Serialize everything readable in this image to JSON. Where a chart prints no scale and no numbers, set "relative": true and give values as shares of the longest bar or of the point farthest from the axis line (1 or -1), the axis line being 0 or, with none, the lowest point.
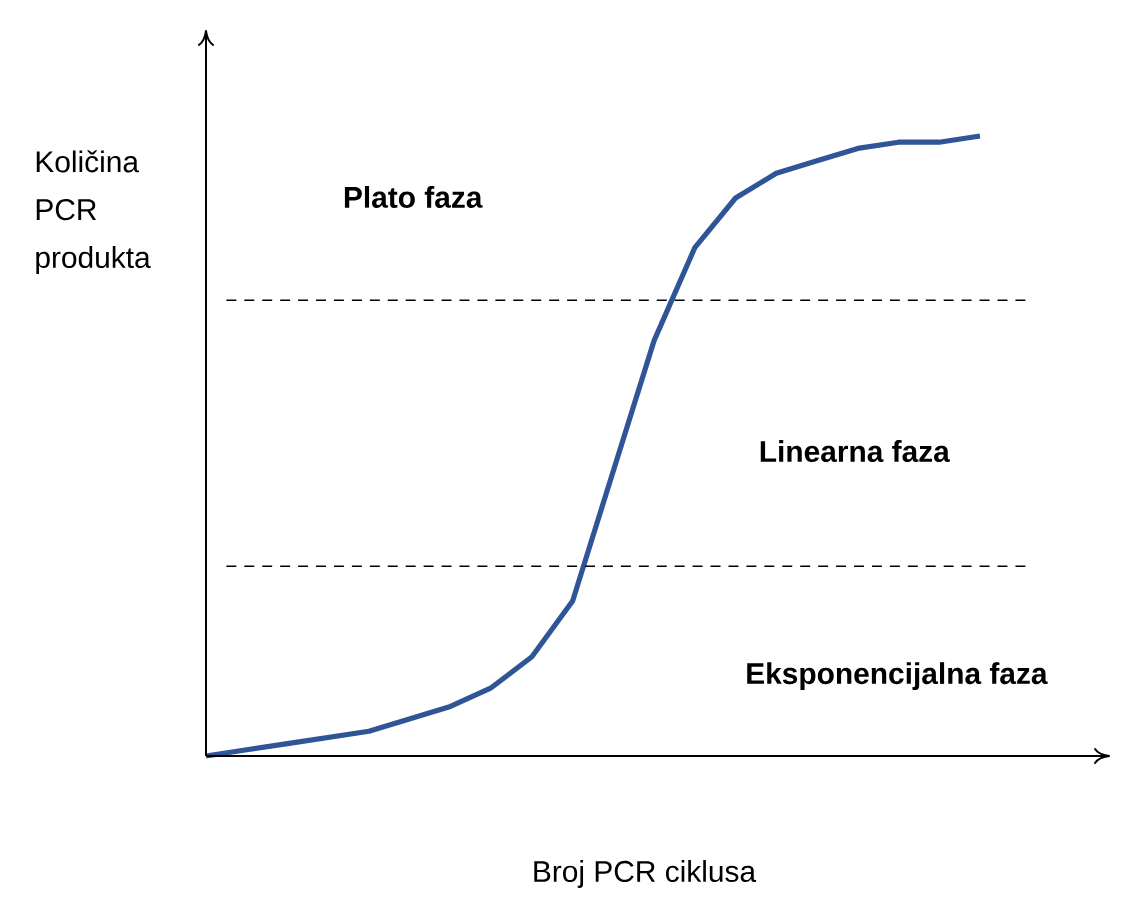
{
  "chart_data": {
    "type": "line",
    "relative": true,
    "xlabel": "Broj PCR ciklusa",
    "ylabel": "Količina PCR produkta",
    "color": "#2f5597",
    "categories": [
      null,
      null,
      null,
      null,
      null,
      null,
      null,
      null,
      null,
      null,
      null,
      null,
      null,
      null,
      null,
      null,
      null,
      null,
      null,
      null
    ],
    "values": [
      0,
      0.01,
      0.02,
      0.03,
      0.04,
      0.06,
      0.08,
      0.11,
      0.16,
      0.25,
      0.46,
      0.67,
      0.82,
      0.9,
      0.94,
      0.96,
      0.98,
      0.99,
      0.99,
      1
    ],
    "ref_lines": [
      {
        "axis": "y",
        "value": 0.735,
        "line_style": "dashed",
        "color": "#000000"
      },
      {
        "axis": "y",
        "value": 0.306,
        "line_style": "dashed",
        "color": "#000000"
      }
    ],
    "annotations": [
      "Plato faza",
      "Linearna faza",
      "Eksponencijalna faza"
    ],
    "marker": "none",
    "line_style": "solid"
  }
}
